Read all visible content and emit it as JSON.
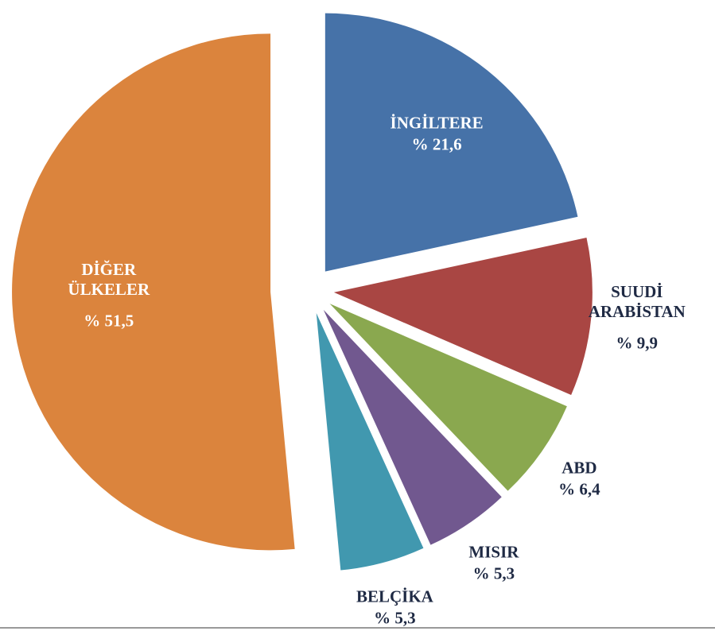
{
  "chart_data": {
    "type": "pie",
    "categories": [
      "İNGİLTERE",
      "SUUDİ ARABİSTAN",
      "ABD",
      "MISIR",
      "BELÇİKA",
      "DİĞER ÜLKELER"
    ],
    "values": [
      21.6,
      9.9,
      6.4,
      5.3,
      5.3,
      51.5
    ],
    "value_labels": [
      "% 21,6",
      "% 9,9",
      "% 6,4",
      "% 5,3",
      "% 5,3",
      "% 51,5"
    ],
    "colors": [
      "#4672a8",
      "#a94643",
      "#8aa84f",
      "#71588f",
      "#4198af",
      "#db843d"
    ]
  }
}
